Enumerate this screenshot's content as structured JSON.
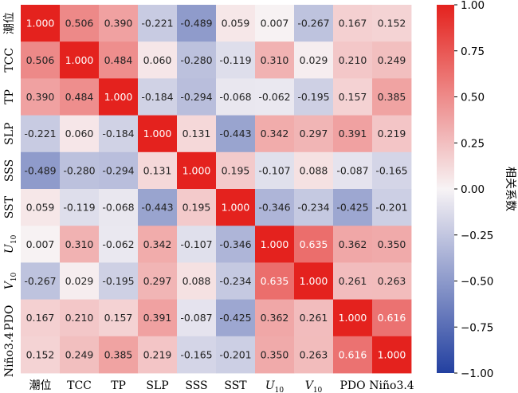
{
  "chart_data": {
    "type": "heatmap",
    "title": "",
    "x_labels": [
      {
        "text": "潮位"
      },
      {
        "text": "TCC"
      },
      {
        "text": "TP"
      },
      {
        "text": "SLP"
      },
      {
        "text": "SSS"
      },
      {
        "text": "SST"
      },
      {
        "text": "U",
        "sub": "10",
        "italic": true
      },
      {
        "text": "V",
        "sub": "10",
        "italic": true
      },
      {
        "text": "PDO"
      },
      {
        "text": "Niño3.4"
      }
    ],
    "y_labels": [
      {
        "text": "潮位"
      },
      {
        "text": "TCC"
      },
      {
        "text": "TP"
      },
      {
        "text": "SLP"
      },
      {
        "text": "SSS"
      },
      {
        "text": "SST"
      },
      {
        "text": "U",
        "sub": "10",
        "italic": true
      },
      {
        "text": "V",
        "sub": "10",
        "italic": true
      },
      {
        "text": "PDO"
      },
      {
        "text": "Niño3.4"
      }
    ],
    "values": [
      [
        1.0,
        0.506,
        0.39,
        -0.221,
        -0.489,
        0.059,
        0.007,
        -0.267,
        0.167,
        0.152
      ],
      [
        0.506,
        1.0,
        0.484,
        0.06,
        -0.28,
        -0.119,
        0.31,
        0.029,
        0.21,
        0.249
      ],
      [
        0.39,
        0.484,
        1.0,
        -0.184,
        -0.294,
        -0.068,
        -0.062,
        -0.195,
        0.157,
        0.385
      ],
      [
        -0.221,
        0.06,
        -0.184,
        1.0,
        0.131,
        -0.443,
        0.342,
        0.297,
        0.391,
        0.219
      ],
      [
        -0.489,
        -0.28,
        -0.294,
        0.131,
        1.0,
        0.195,
        -0.107,
        0.088,
        -0.087,
        -0.165
      ],
      [
        0.059,
        -0.119,
        -0.068,
        -0.443,
        0.195,
        1.0,
        -0.346,
        -0.234,
        -0.425,
        -0.201
      ],
      [
        0.007,
        0.31,
        -0.062,
        0.342,
        -0.107,
        -0.346,
        1.0,
        0.635,
        0.362,
        0.35
      ],
      [
        -0.267,
        0.029,
        -0.195,
        0.297,
        0.088,
        -0.234,
        0.635,
        1.0,
        0.261,
        0.263
      ],
      [
        0.167,
        0.21,
        0.157,
        0.391,
        -0.087,
        -0.425,
        0.362,
        0.261,
        1.0,
        0.616
      ],
      [
        0.152,
        0.249,
        0.385,
        0.219,
        -0.165,
        -0.201,
        0.35,
        0.263,
        0.616,
        1.0
      ]
    ],
    "colorbar": {
      "label": "相关系数",
      "min": -1.0,
      "max": 1.0,
      "ticks": [
        "1.00",
        "0.75",
        "0.50",
        "0.25",
        "0.00",
        "−0.25",
        "−0.50",
        "−0.75",
        "−1.00"
      ],
      "tick_values": [
        1.0,
        0.75,
        0.5,
        0.25,
        0.0,
        -0.25,
        -0.5,
        -0.75,
        -1.0
      ]
    },
    "colors": {
      "negative": "#2340a0",
      "neutral": "#f7f3f5",
      "positive": "#e4221e"
    }
  }
}
